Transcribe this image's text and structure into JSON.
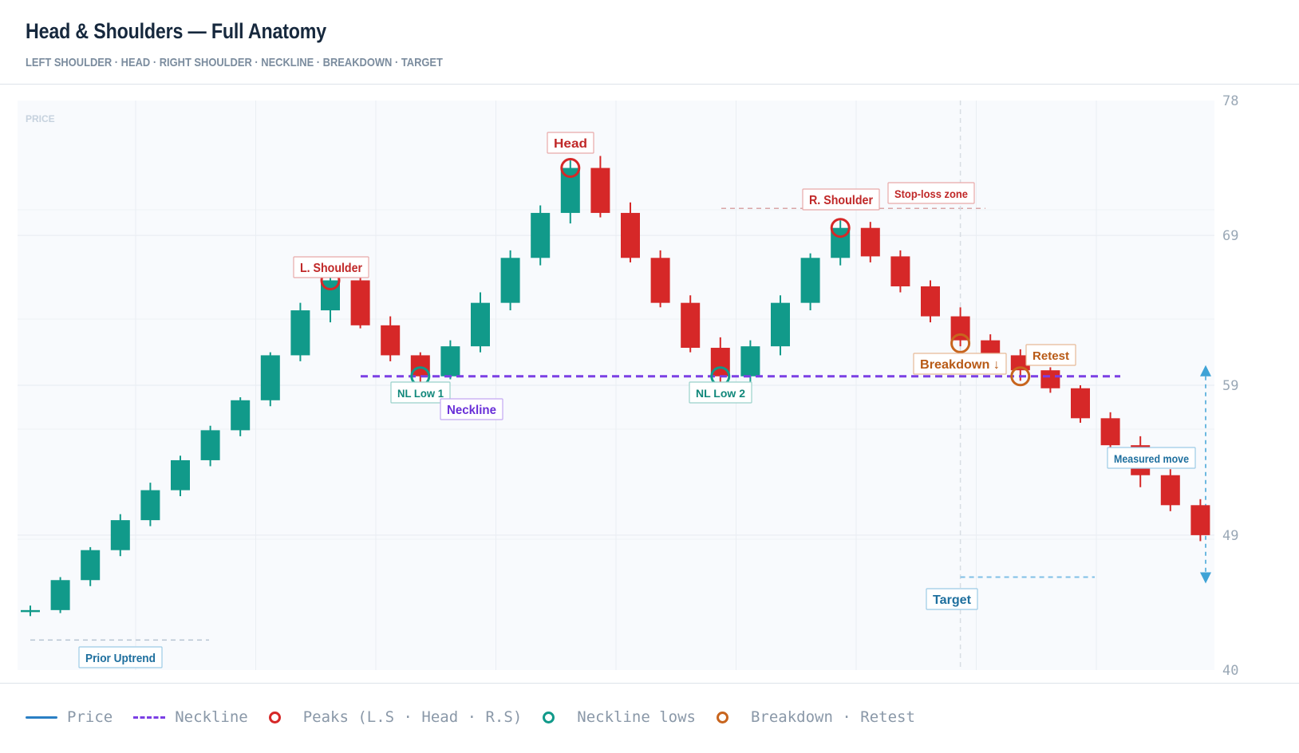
{
  "header": {
    "title": "Head & Shoulders — Full Anatomy",
    "subtitle": "LEFT SHOULDER · HEAD · RIGHT SHOULDER · NECKLINE · BREAKDOWN · TARGET"
  },
  "colors": {
    "bullish": "#119a8a",
    "bearish": "#d62828",
    "neckline": "#7b3fe4",
    "peaks": "#d62828",
    "neckline_lows": "#119a8a",
    "breakdown": "#c8651e",
    "target": "#3fa3d6"
  },
  "chart_data": {
    "type": "candlestick",
    "y_axis_label": "PRICE",
    "yticks": [
      78,
      69,
      59,
      49,
      40
    ],
    "ylim": [
      40,
      78
    ],
    "grid": true,
    "neckline_price": 59.6,
    "candles": [
      {
        "o": 44.0,
        "h": 44.3,
        "l": 43.6,
        "c": 44.0
      },
      {
        "o": 44.0,
        "h": 46.2,
        "l": 43.8,
        "c": 46.0
      },
      {
        "o": 46.0,
        "h": 48.2,
        "l": 45.6,
        "c": 48.0
      },
      {
        "o": 48.0,
        "h": 50.4,
        "l": 47.6,
        "c": 50.0
      },
      {
        "o": 50.0,
        "h": 52.5,
        "l": 49.6,
        "c": 52.0
      },
      {
        "o": 52.0,
        "h": 54.3,
        "l": 51.6,
        "c": 54.0
      },
      {
        "o": 54.0,
        "h": 56.3,
        "l": 53.6,
        "c": 56.0
      },
      {
        "o": 56.0,
        "h": 58.2,
        "l": 55.6,
        "c": 58.0
      },
      {
        "o": 58.0,
        "h": 61.2,
        "l": 57.6,
        "c": 61.0
      },
      {
        "o": 61.0,
        "h": 64.5,
        "l": 60.6,
        "c": 64.0
      },
      {
        "o": 64.0,
        "h": 67.2,
        "l": 63.2,
        "c": 66.0
      },
      {
        "o": 66.0,
        "h": 66.4,
        "l": 62.8,
        "c": 63.0
      },
      {
        "o": 63.0,
        "h": 63.6,
        "l": 60.6,
        "c": 61.0
      },
      {
        "o": 61.0,
        "h": 61.2,
        "l": 59.2,
        "c": 59.6
      },
      {
        "o": 59.6,
        "h": 62.0,
        "l": 59.4,
        "c": 61.6
      },
      {
        "o": 61.6,
        "h": 65.2,
        "l": 61.2,
        "c": 64.5
      },
      {
        "o": 64.5,
        "h": 68.0,
        "l": 64.0,
        "c": 67.5
      },
      {
        "o": 67.5,
        "h": 71.0,
        "l": 67.0,
        "c": 70.5
      },
      {
        "o": 70.5,
        "h": 74.0,
        "l": 69.8,
        "c": 73.5
      },
      {
        "o": 73.5,
        "h": 74.3,
        "l": 70.2,
        "c": 70.5
      },
      {
        "o": 70.5,
        "h": 71.2,
        "l": 67.2,
        "c": 67.5
      },
      {
        "o": 67.5,
        "h": 68.0,
        "l": 64.2,
        "c": 64.5
      },
      {
        "o": 64.5,
        "h": 65.0,
        "l": 61.2,
        "c": 61.5
      },
      {
        "o": 61.5,
        "h": 62.2,
        "l": 59.2,
        "c": 59.6
      },
      {
        "o": 59.6,
        "h": 62.0,
        "l": 59.0,
        "c": 61.6
      },
      {
        "o": 61.6,
        "h": 65.0,
        "l": 61.0,
        "c": 64.5
      },
      {
        "o": 64.5,
        "h": 67.8,
        "l": 64.0,
        "c": 67.5
      },
      {
        "o": 67.5,
        "h": 70.0,
        "l": 67.0,
        "c": 69.5
      },
      {
        "o": 69.5,
        "h": 69.9,
        "l": 67.2,
        "c": 67.6
      },
      {
        "o": 67.6,
        "h": 68.0,
        "l": 65.2,
        "c": 65.6
      },
      {
        "o": 65.6,
        "h": 66.0,
        "l": 63.2,
        "c": 63.6
      },
      {
        "o": 63.6,
        "h": 64.2,
        "l": 61.6,
        "c": 62.0
      },
      {
        "o": 62.0,
        "h": 62.4,
        "l": 60.6,
        "c": 61.0
      },
      {
        "o": 61.0,
        "h": 61.4,
        "l": 59.3,
        "c": 60.0
      },
      {
        "o": 60.0,
        "h": 60.2,
        "l": 58.5,
        "c": 58.8
      },
      {
        "o": 58.8,
        "h": 59.0,
        "l": 56.5,
        "c": 56.8
      },
      {
        "o": 56.8,
        "h": 57.2,
        "l": 54.6,
        "c": 55.0
      },
      {
        "o": 55.0,
        "h": 55.6,
        "l": 52.2,
        "c": 53.0
      },
      {
        "o": 53.0,
        "h": 53.4,
        "l": 50.6,
        "c": 51.0
      },
      {
        "o": 51.0,
        "h": 51.4,
        "l": 48.6,
        "c": 49.0
      }
    ],
    "annotations": [
      {
        "text": "L. Shoulder",
        "kind": "peak"
      },
      {
        "text": "Head",
        "kind": "peak"
      },
      {
        "text": "R. Shoulder",
        "kind": "peak"
      },
      {
        "text": "NL Low 1",
        "kind": "low"
      },
      {
        "text": "NL Low 2",
        "kind": "low"
      },
      {
        "text": "Neckline",
        "kind": "neckline"
      },
      {
        "text": "Stop-loss zone",
        "kind": "stop"
      },
      {
        "text": "Breakdown ↓",
        "kind": "breakdown"
      },
      {
        "text": "Retest",
        "kind": "retest"
      },
      {
        "text": "Measured move",
        "kind": "measure"
      },
      {
        "text": "Target",
        "kind": "target"
      },
      {
        "text": "Prior Uptrend",
        "kind": "uptrend"
      }
    ]
  },
  "legend": {
    "price": "Price",
    "neckline": "Neckline",
    "peaks": "Peaks (L.S · Head · R.S)",
    "neckline_lows": "Neckline lows",
    "breakdown_retest": "Breakdown · Retest"
  }
}
